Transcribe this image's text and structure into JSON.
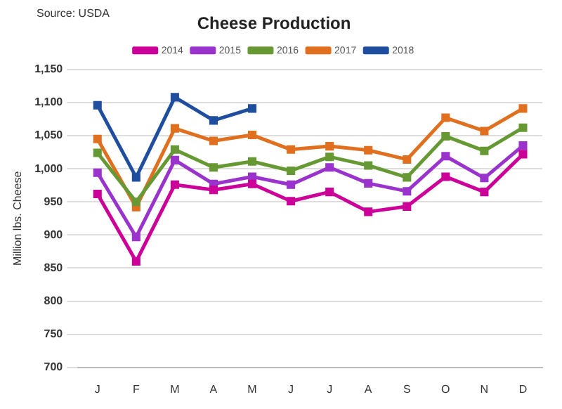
{
  "chart_data": {
    "type": "line",
    "title": "Cheese Production",
    "ylabel": "Million lbs. Cheese",
    "annotations": [
      "Source: USDA"
    ],
    "categories": [
      "J",
      "F",
      "M",
      "A",
      "M",
      "J",
      "J",
      "A",
      "S",
      "O",
      "N",
      "D"
    ],
    "series": [
      {
        "name": "2014",
        "color": "#cc0099",
        "values": [
          962,
          860,
          976,
          968,
          977,
          951,
          965,
          935,
          943,
          988,
          965,
          1022
        ]
      },
      {
        "name": "2015",
        "color": "#9933cc",
        "values": [
          994,
          897,
          1013,
          977,
          988,
          976,
          1002,
          978,
          966,
          1019,
          986,
          1035
        ]
      },
      {
        "name": "2016",
        "color": "#669933",
        "values": [
          1024,
          950,
          1029,
          1002,
          1011,
          997,
          1018,
          1005,
          987,
          1049,
          1027,
          1062
        ]
      },
      {
        "name": "2017",
        "color": "#e0701f",
        "values": [
          1045,
          942,
          1061,
          1042,
          1051,
          1029,
          1034,
          1028,
          1014,
          1077,
          1057,
          1091
        ]
      },
      {
        "name": "2018",
        "color": "#1f4e9f",
        "values": [
          1096,
          987,
          1108,
          1073,
          1091,
          null,
          null,
          null,
          null,
          null,
          null,
          null
        ]
      }
    ],
    "ylim": [
      700,
      1150
    ],
    "yticks": [
      {
        "value": 700,
        "label": "700"
      },
      {
        "value": 750,
        "label": "750"
      },
      {
        "value": 800,
        "label": "800"
      },
      {
        "value": 850,
        "label": "850"
      },
      {
        "value": 900,
        "label": "900"
      },
      {
        "value": 950,
        "label": "950"
      },
      {
        "value": 1000,
        "label": "1,000"
      },
      {
        "value": 1050,
        "label": "1,050"
      },
      {
        "value": 1100,
        "label": "1,100"
      },
      {
        "value": 1150,
        "label": "1,150"
      }
    ],
    "grid": "y",
    "legend": "top",
    "marker": "square",
    "line_style": "solid"
  }
}
